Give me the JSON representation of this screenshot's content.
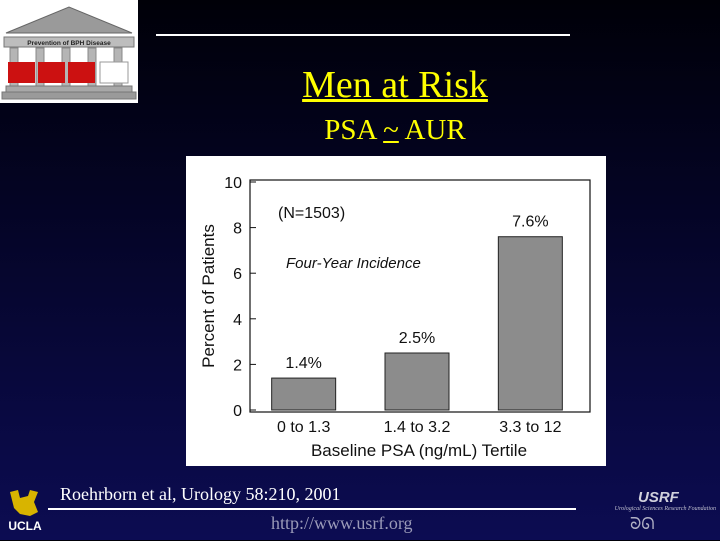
{
  "logo": {
    "banner_text": "Prevention of BPH Disease",
    "colors": {
      "roof": "#9a9a9a",
      "column": "#b8b8b8",
      "red_block": "#cc1111"
    }
  },
  "slide": {
    "title": "Men at Risk",
    "subtitle": {
      "left": "PSA",
      "symbol": "~",
      "right": "AUR"
    }
  },
  "chart_data": {
    "type": "bar",
    "categories": [
      "0 to 1.3",
      "1.4 to 3.2",
      "3.3 to 12"
    ],
    "values": [
      1.4,
      2.5,
      7.6
    ],
    "value_labels": [
      "1.4%",
      "2.5%",
      "7.6%"
    ],
    "title": "",
    "xlabel": "Baseline PSA (ng/mL) Tertile",
    "ylabel": "Percent of Patients",
    "ylim": [
      0,
      10
    ],
    "yticks": [
      "0",
      "2",
      "4",
      "6",
      "8",
      "10"
    ],
    "annotations": [
      "(N=1503)",
      "Four-Year Incidence"
    ],
    "grid": false,
    "legend": "none",
    "bar_color": "#8c8c8c"
  },
  "citation": "Roehrborn et al, Urology 58:210, 2001",
  "url": "http://www.usrf.org",
  "footer": {
    "ucla_text": "UCLA",
    "usrf_title": "USRF",
    "usrf_subtitle": "Urological Sciences Research Foundation",
    "usrf_emblem": "ᘐᘏ"
  }
}
